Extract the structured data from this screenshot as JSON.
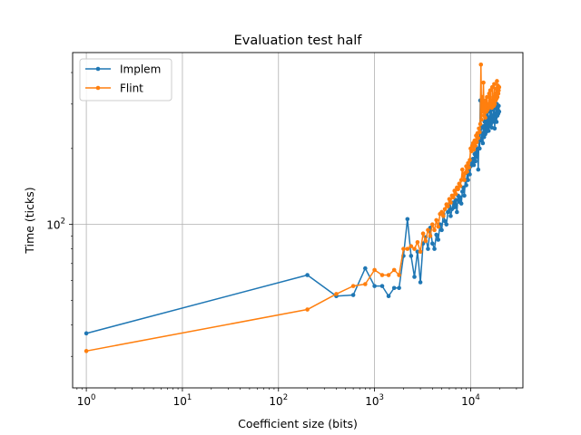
{
  "chart_data": {
    "type": "line",
    "title": "Evaluation test half",
    "xlabel": "Coefficient size (bits)",
    "ylabel": "Time (ticks)",
    "x_scale": "log",
    "y_scale": "log",
    "xlim": [
      0.72,
      35000
    ],
    "ylim": [
      22.5,
      480
    ],
    "grid": true,
    "legend_position": "top-left",
    "x_ticks": [
      {
        "value": 1,
        "base": "10",
        "exp": "0"
      },
      {
        "value": 10,
        "base": "10",
        "exp": "1"
      },
      {
        "value": 100,
        "base": "10",
        "exp": "2"
      },
      {
        "value": 1000,
        "base": "10",
        "exp": "3"
      },
      {
        "value": 10000,
        "base": "10",
        "exp": "4"
      }
    ],
    "y_ticks": [
      {
        "value": 100,
        "base": "10",
        "exp": "2"
      }
    ],
    "series": [
      {
        "name": "Implem",
        "color": "#1f77b4",
        "points": [
          [
            1,
            37.0
          ],
          [
            200,
            63.0
          ],
          [
            400,
            52.0
          ],
          [
            600,
            52.5
          ],
          [
            800,
            67.0
          ],
          [
            1000,
            57.0
          ],
          [
            1200,
            57.0
          ],
          [
            1400,
            52.0
          ],
          [
            1600,
            56.0
          ],
          [
            1800,
            56.0
          ],
          [
            2000,
            75.0
          ],
          [
            2200,
            105.0
          ],
          [
            2400,
            75.0
          ],
          [
            2600,
            62.0
          ],
          [
            2800,
            78.0
          ],
          [
            3000,
            59.0
          ],
          [
            3200,
            84.0
          ],
          [
            3400,
            89.0
          ],
          [
            3600,
            80.0
          ],
          [
            3800,
            97.0
          ],
          [
            4000,
            84.0
          ],
          [
            4200,
            80.0
          ],
          [
            4400,
            91.0
          ],
          [
            4600,
            87.0
          ],
          [
            4800,
            100.0
          ],
          [
            5000,
            95.0
          ],
          [
            5200,
            110.0
          ],
          [
            5400,
            103.0
          ],
          [
            5600,
            100.0
          ],
          [
            5800,
            112.0
          ],
          [
            6000,
            118.0
          ],
          [
            6200,
            108.0
          ],
          [
            6400,
            115.0
          ],
          [
            6600,
            122.0
          ],
          [
            6800,
            117.0
          ],
          [
            7000,
            125.0
          ],
          [
            7200,
            112.0
          ],
          [
            7400,
            130.0
          ],
          [
            7600,
            123.0
          ],
          [
            7800,
            128.0
          ],
          [
            8000,
            121.0
          ],
          [
            8200,
            135.0
          ],
          [
            8400,
            140.0
          ],
          [
            8600,
            130.0
          ],
          [
            8800,
            150.0
          ],
          [
            9000,
            143.0
          ],
          [
            9200,
            160.0
          ],
          [
            9400,
            150.0
          ],
          [
            9600,
            165.0
          ],
          [
            9800,
            158.0
          ],
          [
            10000,
            170.0
          ],
          [
            10200,
            180.0
          ],
          [
            10400,
            175.0
          ],
          [
            10600,
            182.0
          ],
          [
            10800,
            172.0
          ],
          [
            11000,
            190.0
          ],
          [
            11200,
            178.0
          ],
          [
            11400,
            195.0
          ],
          [
            11600,
            185.0
          ],
          [
            11800,
            200.0
          ],
          [
            12000,
            165.0
          ],
          [
            12200,
            220.0
          ],
          [
            12400,
            200.0
          ],
          [
            12600,
            310.0
          ],
          [
            12800,
            240.0
          ],
          [
            13000,
            215.0
          ],
          [
            13200,
            230.0
          ],
          [
            13400,
            210.0
          ],
          [
            13600,
            245.0
          ],
          [
            13800,
            222.0
          ],
          [
            14000,
            255.0
          ],
          [
            14200,
            228.0
          ],
          [
            14400,
            260.0
          ],
          [
            14600,
            233.0
          ],
          [
            14800,
            270.0
          ],
          [
            15000,
            240.0
          ],
          [
            15200,
            280.0
          ],
          [
            15400,
            235.0
          ],
          [
            15600,
            265.0
          ],
          [
            15800,
            245.0
          ],
          [
            16000,
            290.0
          ],
          [
            16200,
            250.0
          ],
          [
            16400,
            300.0
          ],
          [
            16600,
            242.0
          ],
          [
            16800,
            270.0
          ],
          [
            17000,
            255.0
          ],
          [
            17200,
            285.0
          ],
          [
            17400,
            260.0
          ],
          [
            17600,
            295.0
          ],
          [
            17800,
            240.0
          ],
          [
            18000,
            275.0
          ],
          [
            18200,
            265.0
          ],
          [
            18400,
            290.0
          ],
          [
            18600,
            255.0
          ],
          [
            18800,
            300.0
          ],
          [
            19000,
            270.0
          ],
          [
            19200,
            285.0
          ],
          [
            19400,
            275.0
          ],
          [
            19600,
            295.0
          ],
          [
            19800,
            280.0
          ]
        ]
      },
      {
        "name": "Flint",
        "color": "#ff7f0e",
        "points": [
          [
            1,
            31.5
          ],
          [
            200,
            46.0
          ],
          [
            400,
            53.0
          ],
          [
            600,
            57.0
          ],
          [
            800,
            58.0
          ],
          [
            1000,
            66.0
          ],
          [
            1200,
            63.0
          ],
          [
            1400,
            63.0
          ],
          [
            1600,
            66.0
          ],
          [
            1800,
            63.0
          ],
          [
            2000,
            80.0
          ],
          [
            2200,
            80.0
          ],
          [
            2400,
            82.0
          ],
          [
            2600,
            80.0
          ],
          [
            2800,
            85.0
          ],
          [
            3000,
            78.0
          ],
          [
            3200,
            92.0
          ],
          [
            3400,
            86.0
          ],
          [
            3600,
            95.0
          ],
          [
            3800,
            90.0
          ],
          [
            4000,
            100.0
          ],
          [
            4200,
            95.0
          ],
          [
            4400,
            104.0
          ],
          [
            4600,
            98.0
          ],
          [
            4800,
            110.0
          ],
          [
            5000,
            112.0
          ],
          [
            5200,
            108.0
          ],
          [
            5400,
            115.0
          ],
          [
            5600,
            120.0
          ],
          [
            5800,
            118.0
          ],
          [
            6000,
            126.0
          ],
          [
            6200,
            122.0
          ],
          [
            6400,
            130.0
          ],
          [
            6600,
            128.0
          ],
          [
            6800,
            136.0
          ],
          [
            7000,
            132.0
          ],
          [
            7200,
            140.0
          ],
          [
            7400,
            138.0
          ],
          [
            7600,
            145.0
          ],
          [
            7800,
            142.0
          ],
          [
            8000,
            150.0
          ],
          [
            8200,
            165.0
          ],
          [
            8400,
            155.0
          ],
          [
            8600,
            150.0
          ],
          [
            8800,
            160.0
          ],
          [
            9000,
            170.0
          ],
          [
            9200,
            162.0
          ],
          [
            9400,
            175.0
          ],
          [
            9600,
            168.0
          ],
          [
            9800,
            180.0
          ],
          [
            10000,
            200.0
          ],
          [
            10200,
            195.0
          ],
          [
            10400,
            205.0
          ],
          [
            10600,
            210.0
          ],
          [
            10800,
            198.0
          ],
          [
            11000,
            215.0
          ],
          [
            11200,
            205.0
          ],
          [
            11400,
            225.0
          ],
          [
            11600,
            212.0
          ],
          [
            11800,
            230.0
          ],
          [
            12000,
            220.0
          ],
          [
            12200,
            240.0
          ],
          [
            12400,
            232.0
          ],
          [
            12600,
            250.0
          ],
          [
            12800,
            430.0
          ],
          [
            13000,
            260.0
          ],
          [
            13200,
            320.0
          ],
          [
            13400,
            280.0
          ],
          [
            13600,
            365.0
          ],
          [
            13800,
            270.0
          ],
          [
            14000,
            300.0
          ],
          [
            14200,
            265.0
          ],
          [
            14400,
            310.0
          ],
          [
            14600,
            280.0
          ],
          [
            14800,
            320.0
          ],
          [
            15000,
            285.0
          ],
          [
            15200,
            300.0
          ],
          [
            15400,
            290.0
          ],
          [
            15600,
            330.0
          ],
          [
            15800,
            295.0
          ],
          [
            16000,
            340.0
          ],
          [
            16200,
            300.0
          ],
          [
            16400,
            310.0
          ],
          [
            16600,
            290.0
          ],
          [
            16800,
            350.0
          ],
          [
            17000,
            305.0
          ],
          [
            17200,
            320.0
          ],
          [
            17400,
            295.0
          ],
          [
            17600,
            360.0
          ],
          [
            17800,
            300.0
          ],
          [
            18000,
            330.0
          ],
          [
            18200,
            310.0
          ],
          [
            18400,
            345.0
          ],
          [
            18600,
            315.0
          ],
          [
            18800,
            370.0
          ],
          [
            19000,
            320.0
          ],
          [
            19200,
            355.0
          ],
          [
            19400,
            330.0
          ],
          [
            19600,
            340.0
          ],
          [
            19800,
            350.0
          ]
        ]
      }
    ]
  }
}
